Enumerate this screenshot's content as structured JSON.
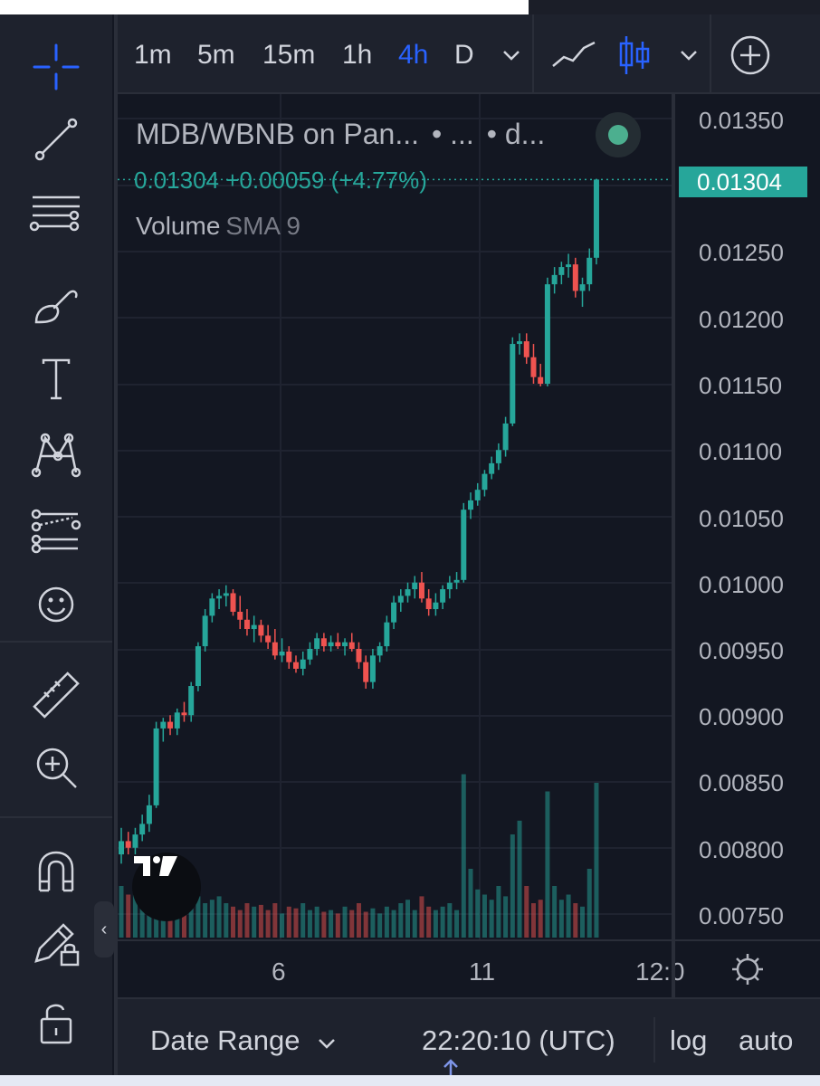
{
  "timeframes": [
    {
      "label": "1m",
      "active": false
    },
    {
      "label": "5m",
      "active": false
    },
    {
      "label": "15m",
      "active": false
    },
    {
      "label": "1h",
      "active": false
    },
    {
      "label": "4h",
      "active": true
    },
    {
      "label": "D",
      "active": false
    }
  ],
  "legend": {
    "symbol": "MDB/WBNB on Pan...",
    "extra1": "•   ...",
    "extra2": "•   d...",
    "price": "0.01304",
    "change": "+0.00059",
    "change_pct": "(+4.77%)",
    "volume_label": "Volume",
    "volume_indicator": "SMA 9"
  },
  "price_axis": {
    "labels": [
      "0.01350",
      "0.01250",
      "0.01200",
      "0.01150",
      "0.01100",
      "0.01050",
      "0.01000",
      "0.00950",
      "0.00900",
      "0.00850",
      "0.00800",
      "0.00750"
    ],
    "current": "0.01304"
  },
  "time_axis": {
    "labels": [
      "6",
      "11",
      "12:0"
    ]
  },
  "bottom_bar": {
    "date_range": "Date Range",
    "clock": "22:20:10 (UTC)",
    "log": "log",
    "auto": "auto"
  },
  "colors": {
    "up": "#26a69a",
    "down": "#ef5350",
    "accent": "#2962ff",
    "background": "#131722"
  },
  "icons": [
    "crosshair-icon",
    "trendline-icon",
    "fib-icon",
    "brush-icon",
    "text-icon",
    "pattern-icon",
    "prediction-icon",
    "emoji-icon",
    "ruler-icon",
    "zoom-in-icon",
    "magnet-icon",
    "lock-drawing-icon",
    "unlock-icon",
    "line-chart-icon",
    "candles-icon",
    "add-indicator-icon",
    "settings-icon"
  ],
  "chart_data": {
    "type": "candlestick",
    "price_range": [
      0.0073,
      0.0138
    ],
    "candles": [
      [
        0.00795,
        0.00815,
        0.00788,
        0.00805
      ],
      [
        0.00805,
        0.00812,
        0.00795,
        0.008
      ],
      [
        0.008,
        0.00815,
        0.00795,
        0.0081
      ],
      [
        0.0081,
        0.00825,
        0.00805,
        0.00818
      ],
      [
        0.00818,
        0.0084,
        0.00812,
        0.00832
      ],
      [
        0.00832,
        0.00895,
        0.0083,
        0.0089
      ],
      [
        0.0089,
        0.00898,
        0.0088,
        0.00895
      ],
      [
        0.00895,
        0.009,
        0.00885,
        0.0089
      ],
      [
        0.0089,
        0.00905,
        0.00885,
        0.00902
      ],
      [
        0.00902,
        0.0091,
        0.00895,
        0.009
      ],
      [
        0.009,
        0.00925,
        0.00895,
        0.00922
      ],
      [
        0.00922,
        0.00955,
        0.00918,
        0.00952
      ],
      [
        0.00952,
        0.0098,
        0.00948,
        0.00975
      ],
      [
        0.00975,
        0.00992,
        0.0097,
        0.00988
      ],
      [
        0.00988,
        0.00995,
        0.0098,
        0.0099
      ],
      [
        0.0099,
        0.00998,
        0.00982,
        0.00992
      ],
      [
        0.00992,
        0.00995,
        0.00975,
        0.00978
      ],
      [
        0.00978,
        0.0099,
        0.00965,
        0.00972
      ],
      [
        0.00972,
        0.0098,
        0.0096,
        0.00965
      ],
      [
        0.00965,
        0.00975,
        0.00955,
        0.00968
      ],
      [
        0.00968,
        0.00972,
        0.00955,
        0.0096
      ],
      [
        0.0096,
        0.00968,
        0.0095,
        0.00955
      ],
      [
        0.00955,
        0.00965,
        0.00942,
        0.00945
      ],
      [
        0.00945,
        0.00958,
        0.0094,
        0.00948
      ],
      [
        0.00948,
        0.00952,
        0.00935,
        0.0094
      ],
      [
        0.0094,
        0.00945,
        0.00932,
        0.00935
      ],
      [
        0.00935,
        0.00948,
        0.0093,
        0.00942
      ],
      [
        0.00942,
        0.00955,
        0.00938,
        0.0095
      ],
      [
        0.0095,
        0.00962,
        0.00945,
        0.00958
      ],
      [
        0.00958,
        0.00962,
        0.00948,
        0.00952
      ],
      [
        0.00952,
        0.0096,
        0.00948,
        0.00955
      ],
      [
        0.00955,
        0.00962,
        0.0095,
        0.00952
      ],
      [
        0.00952,
        0.00958,
        0.00945,
        0.00955
      ],
      [
        0.00955,
        0.00962,
        0.00948,
        0.0095
      ],
      [
        0.0095,
        0.00955,
        0.00935,
        0.0094
      ],
      [
        0.0094,
        0.00945,
        0.0092,
        0.00925
      ],
      [
        0.00925,
        0.0095,
        0.0092,
        0.00945
      ],
      [
        0.00945,
        0.00955,
        0.0094,
        0.00952
      ],
      [
        0.00952,
        0.00975,
        0.00948,
        0.0097
      ],
      [
        0.0097,
        0.0099,
        0.00965,
        0.00985
      ],
      [
        0.00985,
        0.00995,
        0.00978,
        0.0099
      ],
      [
        0.0099,
        0.01,
        0.00985,
        0.00995
      ],
      [
        0.00995,
        0.01005,
        0.00988,
        0.01
      ],
      [
        0.01,
        0.01008,
        0.00985,
        0.00988
      ],
      [
        0.00988,
        0.00995,
        0.00975,
        0.0098
      ],
      [
        0.0098,
        0.00992,
        0.00975,
        0.00985
      ],
      [
        0.00985,
        0.00998,
        0.0098,
        0.00995
      ],
      [
        0.00995,
        0.01005,
        0.00988,
        0.01
      ],
      [
        0.01,
        0.01008,
        0.00995,
        0.01002
      ],
      [
        0.01002,
        0.0106,
        0.01,
        0.01055
      ],
      [
        0.01055,
        0.01068,
        0.01048,
        0.01062
      ],
      [
        0.01062,
        0.01075,
        0.01058,
        0.0107
      ],
      [
        0.0107,
        0.01085,
        0.01065,
        0.01082
      ],
      [
        0.01082,
        0.01095,
        0.01078,
        0.0109
      ],
      [
        0.0109,
        0.01105,
        0.01085,
        0.011
      ],
      [
        0.011,
        0.01125,
        0.01095,
        0.0112
      ],
      [
        0.0112,
        0.01185,
        0.01118,
        0.0118
      ],
      [
        0.0118,
        0.01188,
        0.01172,
        0.01182
      ],
      [
        0.01182,
        0.01188,
        0.01165,
        0.0117
      ],
      [
        0.0117,
        0.0118,
        0.0115,
        0.01155
      ],
      [
        0.01155,
        0.01165,
        0.01148,
        0.0115
      ],
      [
        0.0115,
        0.0123,
        0.01148,
        0.01225
      ],
      [
        0.01225,
        0.01238,
        0.01218,
        0.01232
      ],
      [
        0.01232,
        0.01242,
        0.01225,
        0.01238
      ],
      [
        0.01238,
        0.01248,
        0.0123,
        0.0124
      ],
      [
        0.0124,
        0.01245,
        0.01215,
        0.0122
      ],
      [
        0.0122,
        0.0123,
        0.01208,
        0.01225
      ],
      [
        0.01225,
        0.01252,
        0.0122,
        0.01245
      ],
      [
        0.01245,
        0.01304,
        0.0124,
        0.01304
      ]
    ],
    "volumes": [
      0.3,
      0.25,
      0.28,
      0.18,
      0.22,
      0.35,
      0.2,
      0.24,
      0.22,
      0.2,
      0.18,
      0.24,
      0.2,
      0.22,
      0.24,
      0.2,
      0.18,
      0.16,
      0.2,
      0.18,
      0.19,
      0.16,
      0.2,
      0.14,
      0.18,
      0.17,
      0.2,
      0.16,
      0.18,
      0.15,
      0.16,
      0.14,
      0.18,
      0.16,
      0.2,
      0.15,
      0.17,
      0.14,
      0.18,
      0.16,
      0.2,
      0.22,
      0.16,
      0.24,
      0.18,
      0.16,
      0.18,
      0.2,
      0.16,
      0.95,
      0.4,
      0.28,
      0.25,
      0.22,
      0.3,
      0.24,
      0.6,
      0.68,
      0.3,
      0.2,
      0.22,
      0.85,
      0.3,
      0.22,
      0.25,
      0.2,
      0.18,
      0.4,
      0.9
    ]
  }
}
